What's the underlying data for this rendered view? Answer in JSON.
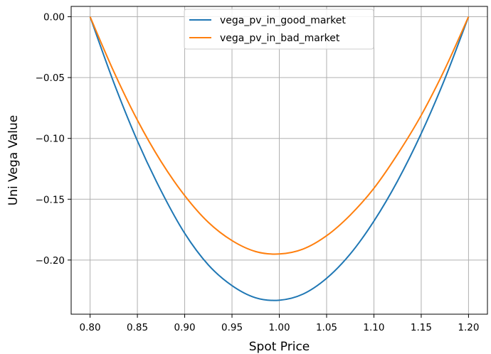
{
  "chart_data": {
    "type": "line",
    "title": "",
    "xlabel": "Spot Price",
    "ylabel": "Uni Vega Value",
    "xlim": [
      0.78,
      1.22
    ],
    "ylim": [
      -0.2445,
      0.0085
    ],
    "xticks": [
      "0.80",
      "0.85",
      "0.90",
      "0.95",
      "1.00",
      "1.05",
      "1.10",
      "1.15",
      "1.20"
    ],
    "yticks": [
      "0.00",
      "−0.05",
      "−0.10",
      "−0.15",
      "−0.20"
    ],
    "grid": true,
    "legend_position": "upper center",
    "x": [
      0.8,
      0.825,
      0.85,
      0.875,
      0.9,
      0.925,
      0.95,
      0.975,
      1.0,
      1.025,
      1.05,
      1.075,
      1.1,
      1.125,
      1.15,
      1.175,
      1.2
    ],
    "series": [
      {
        "name": "vega_pv_in_good_market",
        "color": "#1f77b4",
        "values": [
          0.0,
          -0.054,
          -0.102,
          -0.143,
          -0.178,
          -0.204,
          -0.221,
          -0.231,
          -0.233,
          -0.228,
          -0.215,
          -0.195,
          -0.168,
          -0.135,
          -0.096,
          -0.051,
          0.0
        ]
      },
      {
        "name": "vega_pv_in_bad_market",
        "color": "#ff7f0e",
        "values": [
          0.0,
          -0.045,
          -0.085,
          -0.119,
          -0.147,
          -0.169,
          -0.184,
          -0.193,
          -0.195,
          -0.191,
          -0.18,
          -0.163,
          -0.141,
          -0.113,
          -0.081,
          -0.043,
          0.0
        ]
      }
    ]
  }
}
